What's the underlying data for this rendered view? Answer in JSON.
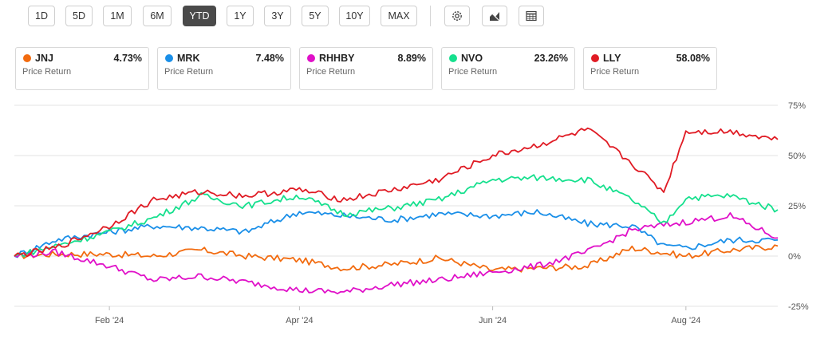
{
  "toolbar": {
    "ranges": [
      "1D",
      "5D",
      "1M",
      "6M",
      "YTD",
      "1Y",
      "3Y",
      "5Y",
      "10Y",
      "MAX"
    ],
    "active": "YTD",
    "icons": [
      "settings-icon",
      "chart-type-icon",
      "table-icon"
    ]
  },
  "cards": [
    {
      "ticker": "JNJ",
      "value": "4.73%",
      "sub": "Price Return",
      "color": "#f26b0f"
    },
    {
      "ticker": "MRK",
      "value": "7.48%",
      "sub": "Price Return",
      "color": "#1a8fe8"
    },
    {
      "ticker": "RHHBY",
      "value": "8.89%",
      "sub": "Price Return",
      "color": "#e010c8"
    },
    {
      "ticker": "NVO",
      "value": "23.26%",
      "sub": "Price Return",
      "color": "#16e08e"
    },
    {
      "ticker": "LLY",
      "value": "58.08%",
      "sub": "Price Return",
      "color": "#e01b24"
    }
  ],
  "chart_data": {
    "type": "line",
    "y_ticks": [
      "75%",
      "50%",
      "25%",
      "0%",
      "-25%"
    ],
    "y_values": [
      75,
      50,
      25,
      0,
      -25
    ],
    "ylim": [
      -25,
      75
    ],
    "x_ticks": [
      "Feb '24",
      "Apr '24",
      "Jun '24",
      "Aug '24"
    ],
    "x_tick_dates": [
      "2024-02-01",
      "2024-04-01",
      "2024-06-01",
      "2024-08-01"
    ],
    "x_range": [
      "2024-01-02",
      "2024-08-30"
    ],
    "grid": true,
    "series": [
      {
        "name": "JNJ",
        "color": "#f26b0f",
        "x": [
          "2024-01-02",
          "2024-01-15",
          "2024-02-01",
          "2024-02-15",
          "2024-03-01",
          "2024-03-15",
          "2024-04-01",
          "2024-04-15",
          "2024-05-01",
          "2024-05-15",
          "2024-06-01",
          "2024-06-15",
          "2024-07-01",
          "2024-07-15",
          "2024-08-01",
          "2024-08-15",
          "2024-08-30"
        ],
        "y": [
          0,
          1,
          1,
          0,
          3,
          0,
          -2,
          -6,
          -4,
          -1,
          -7,
          -6,
          -5,
          4,
          0,
          3,
          5
        ]
      },
      {
        "name": "MRK",
        "color": "#1a8fe8",
        "x": [
          "2024-01-02",
          "2024-01-15",
          "2024-02-01",
          "2024-02-15",
          "2024-03-01",
          "2024-03-15",
          "2024-04-01",
          "2024-04-15",
          "2024-05-01",
          "2024-05-15",
          "2024-06-01",
          "2024-06-15",
          "2024-07-01",
          "2024-07-15",
          "2024-07-25",
          "2024-08-01",
          "2024-08-15",
          "2024-08-30"
        ],
        "y": [
          0,
          8,
          12,
          15,
          14,
          12,
          22,
          20,
          18,
          21,
          20,
          22,
          16,
          15,
          5,
          4,
          8,
          8
        ]
      },
      {
        "name": "RHHBY",
        "color": "#e010c8",
        "x": [
          "2024-01-02",
          "2024-01-15",
          "2024-02-01",
          "2024-02-15",
          "2024-03-01",
          "2024-03-15",
          "2024-04-01",
          "2024-04-15",
          "2024-05-01",
          "2024-05-15",
          "2024-06-01",
          "2024-06-15",
          "2024-07-01",
          "2024-07-15",
          "2024-08-01",
          "2024-08-15",
          "2024-08-30"
        ],
        "y": [
          0,
          2,
          -5,
          -12,
          -10,
          -13,
          -17,
          -18,
          -14,
          -12,
          -8,
          -5,
          2,
          13,
          17,
          20,
          9
        ]
      },
      {
        "name": "NVO",
        "color": "#16e08e",
        "x": [
          "2024-01-02",
          "2024-01-15",
          "2024-02-01",
          "2024-02-15",
          "2024-03-01",
          "2024-03-15",
          "2024-04-01",
          "2024-04-15",
          "2024-05-01",
          "2024-05-15",
          "2024-06-01",
          "2024-06-15",
          "2024-07-01",
          "2024-07-15",
          "2024-07-25",
          "2024-08-01",
          "2024-08-15",
          "2024-08-30"
        ],
        "y": [
          0,
          5,
          12,
          19,
          30,
          25,
          30,
          21,
          24,
          28,
          38,
          39,
          38,
          28,
          16,
          29,
          30,
          23
        ]
      },
      {
        "name": "LLY",
        "color": "#e01b24",
        "x": [
          "2024-01-02",
          "2024-01-15",
          "2024-02-01",
          "2024-02-15",
          "2024-03-01",
          "2024-03-15",
          "2024-04-01",
          "2024-04-15",
          "2024-05-01",
          "2024-05-15",
          "2024-06-01",
          "2024-06-15",
          "2024-07-01",
          "2024-07-15",
          "2024-07-25",
          "2024-08-01",
          "2024-08-15",
          "2024-08-30"
        ],
        "y": [
          0,
          4,
          15,
          28,
          32,
          30,
          33,
          28,
          33,
          38,
          50,
          55,
          63,
          46,
          32,
          62,
          62,
          58
        ]
      }
    ]
  }
}
